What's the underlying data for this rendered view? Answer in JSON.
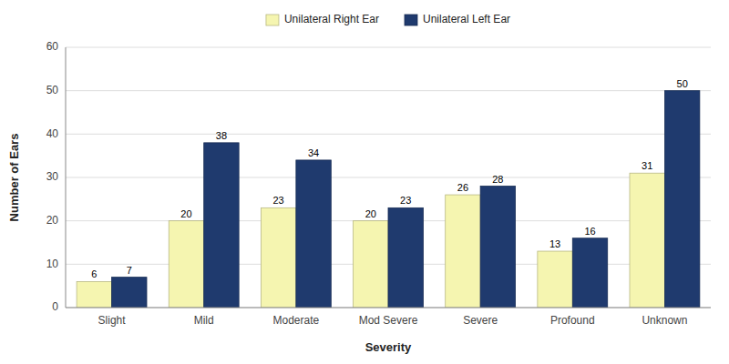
{
  "chart_data": {
    "type": "bar",
    "categories": [
      "Slight",
      "Mild",
      "Moderate",
      "Mod Severe",
      "Severe",
      "Profound",
      "Unknown"
    ],
    "series": [
      {
        "name": "Unilateral Right Ear",
        "color": "#f5f5b0",
        "values": [
          6,
          20,
          23,
          20,
          26,
          13,
          31
        ]
      },
      {
        "name": "Unilateral Left Ear",
        "color": "#1f3a6e",
        "values": [
          7,
          38,
          34,
          23,
          28,
          16,
          50
        ]
      }
    ],
    "xlabel": "Severity",
    "ylabel": "Number of Ears",
    "ylim": [
      0,
      60
    ],
    "yticks": [
      0,
      10,
      20,
      30,
      40,
      50,
      60
    ],
    "grid": true,
    "legend": "top",
    "data_labels": true
  }
}
